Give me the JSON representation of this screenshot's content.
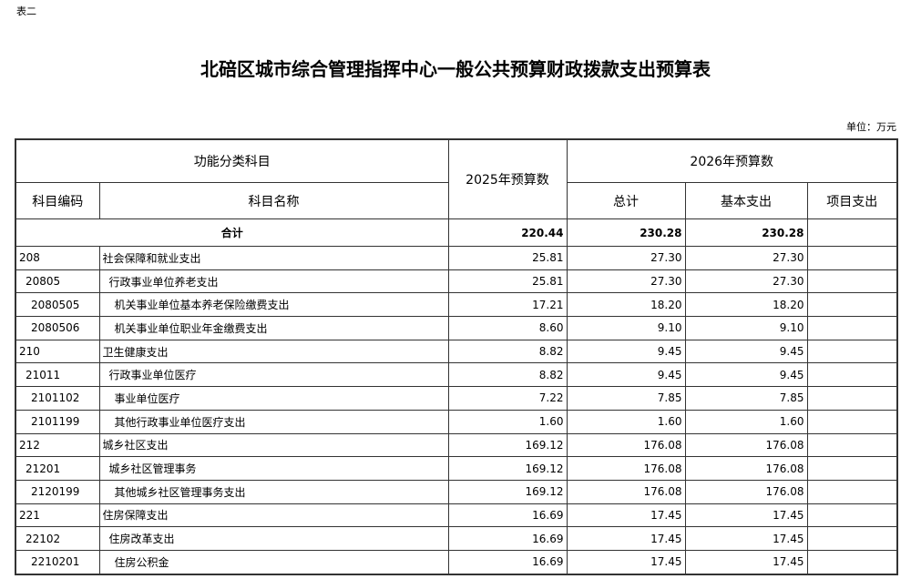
{
  "label": "表二",
  "title": "北碚区城市综合管理指挥中心一般公共预算财政拨款支出预算表",
  "unit": "单位：万元",
  "headers": {
    "functional": "功能分类科目",
    "budget2025": "2025年预算数",
    "budget2026": "2026年预算数",
    "code": "科目编码",
    "name": "科目名称",
    "total": "总计",
    "basic": "基本支出",
    "project": "项目支出"
  },
  "total_row": {
    "label": "合计",
    "b2025": "220.44",
    "total": "230.28",
    "basic": "230.28",
    "project": ""
  },
  "rows": [
    {
      "code": "208",
      "name": "社会保障和就业支出",
      "level": 0,
      "b2025": "25.81",
      "total": "27.30",
      "basic": "27.30",
      "project": ""
    },
    {
      "code": "20805",
      "name": "行政事业单位养老支出",
      "level": 1,
      "b2025": "25.81",
      "total": "27.30",
      "basic": "27.30",
      "project": ""
    },
    {
      "code": "2080505",
      "name": "机关事业单位基本养老保险缴费支出",
      "level": 2,
      "b2025": "17.21",
      "total": "18.20",
      "basic": "18.20",
      "project": ""
    },
    {
      "code": "2080506",
      "name": "机关事业单位职业年金缴费支出",
      "level": 2,
      "b2025": "8.60",
      "total": "9.10",
      "basic": "9.10",
      "project": ""
    },
    {
      "code": "210",
      "name": "卫生健康支出",
      "level": 0,
      "b2025": "8.82",
      "total": "9.45",
      "basic": "9.45",
      "project": ""
    },
    {
      "code": "21011",
      "name": "行政事业单位医疗",
      "level": 1,
      "b2025": "8.82",
      "total": "9.45",
      "basic": "9.45",
      "project": ""
    },
    {
      "code": "2101102",
      "name": "事业单位医疗",
      "level": 2,
      "b2025": "7.22",
      "total": "7.85",
      "basic": "7.85",
      "project": ""
    },
    {
      "code": "2101199",
      "name": "其他行政事业单位医疗支出",
      "level": 2,
      "b2025": "1.60",
      "total": "1.60",
      "basic": "1.60",
      "project": ""
    },
    {
      "code": "212",
      "name": "城乡社区支出",
      "level": 0,
      "b2025": "169.12",
      "total": "176.08",
      "basic": "176.08",
      "project": ""
    },
    {
      "code": "21201",
      "name": "城乡社区管理事务",
      "level": 1,
      "b2025": "169.12",
      "total": "176.08",
      "basic": "176.08",
      "project": ""
    },
    {
      "code": "2120199",
      "name": "其他城乡社区管理事务支出",
      "level": 2,
      "b2025": "169.12",
      "total": "176.08",
      "basic": "176.08",
      "project": ""
    },
    {
      "code": "221",
      "name": "住房保障支出",
      "level": 0,
      "b2025": "16.69",
      "total": "17.45",
      "basic": "17.45",
      "project": ""
    },
    {
      "code": "22102",
      "name": "住房改革支出",
      "level": 1,
      "b2025": "16.69",
      "total": "17.45",
      "basic": "17.45",
      "project": ""
    },
    {
      "code": "2210201",
      "name": "住房公积金",
      "level": 2,
      "b2025": "16.69",
      "total": "17.45",
      "basic": "17.45",
      "project": ""
    }
  ]
}
